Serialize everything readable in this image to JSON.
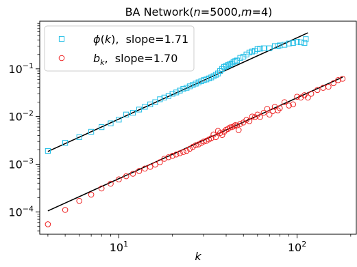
{
  "chart_data": {
    "type": "scatter",
    "title": "BA Network(n=5000,m=4)",
    "xlabel": "k",
    "ylabel": "",
    "xscale": "log",
    "yscale": "log",
    "xlim": [
      3.6,
      215
    ],
    "ylim": [
      3.4e-05,
      1.0
    ],
    "grid": false,
    "legend_position": "upper-left",
    "x_ticks": [
      {
        "value": 10,
        "base": "10",
        "exp": "1"
      },
      {
        "value": 100,
        "base": "10",
        "exp": "2"
      }
    ],
    "y_ticks": [
      {
        "value": 0.0001,
        "base": "10",
        "exp": "−4"
      },
      {
        "value": 0.001,
        "base": "10",
        "exp": "−3"
      },
      {
        "value": 0.01,
        "base": "10",
        "exp": "−2"
      },
      {
        "value": 0.1,
        "base": "10",
        "exp": "−1"
      }
    ],
    "series": [
      {
        "name": "ϕ(k),  slope=1.71",
        "marker": "square",
        "color": "#1fbde6",
        "x": [
          4,
          5,
          6,
          7,
          8,
          9,
          10,
          11,
          12,
          13,
          14,
          15,
          16,
          17,
          18,
          19,
          20,
          21,
          22,
          23,
          24,
          25,
          26,
          27,
          28,
          29,
          30,
          31,
          32,
          33,
          34,
          35,
          36,
          37,
          38,
          39,
          40,
          41,
          42,
          43,
          44,
          45,
          46,
          48,
          50,
          52,
          54,
          56,
          58,
          60,
          62,
          65,
          70,
          75,
          78,
          80,
          85,
          90,
          95,
          100,
          105,
          110,
          112
        ],
        "y": [
          0.0019,
          0.0028,
          0.0037,
          0.0048,
          0.006,
          0.0072,
          0.0086,
          0.011,
          0.012,
          0.014,
          0.016,
          0.018,
          0.02,
          0.023,
          0.025,
          0.027,
          0.03,
          0.032,
          0.035,
          0.038,
          0.04,
          0.043,
          0.046,
          0.049,
          0.052,
          0.055,
          0.058,
          0.06,
          0.063,
          0.066,
          0.07,
          0.075,
          0.08,
          0.09,
          0.1,
          0.11,
          0.115,
          0.12,
          0.125,
          0.13,
          0.14,
          0.145,
          0.15,
          0.17,
          0.18,
          0.2,
          0.22,
          0.23,
          0.24,
          0.26,
          0.265,
          0.27,
          0.27,
          0.3,
          0.3,
          0.31,
          0.32,
          0.34,
          0.35,
          0.37,
          0.36,
          0.35,
          0.42
        ]
      },
      {
        "name": "b_k,  slope=1.70",
        "marker": "circle",
        "color": "#ee2222",
        "x": [
          4,
          5,
          6,
          7,
          8,
          9,
          10,
          11,
          12,
          13,
          14,
          15,
          16,
          17,
          18,
          19,
          20,
          21,
          22,
          23,
          24,
          25,
          26,
          27,
          28,
          29,
          30,
          31,
          32,
          33,
          34,
          35,
          36,
          37,
          38,
          39,
          40,
          41,
          42,
          43,
          44,
          45,
          46,
          47,
          48,
          50,
          52,
          54,
          56,
          58,
          60,
          62,
          65,
          68,
          70,
          73,
          75,
          78,
          80,
          85,
          90,
          95,
          100,
          105,
          110,
          115,
          120,
          130,
          140,
          150,
          160,
          170,
          180
        ],
        "y": [
          5.5e-05,
          0.00011,
          0.00017,
          0.00023,
          0.00031,
          0.00039,
          0.00048,
          0.00056,
          0.00063,
          0.00072,
          0.00081,
          0.00088,
          0.00098,
          0.0011,
          0.0013,
          0.0014,
          0.0015,
          0.0016,
          0.0017,
          0.0018,
          0.0019,
          0.0021,
          0.0023,
          0.0025,
          0.0026,
          0.0028,
          0.003,
          0.0031,
          0.0033,
          0.0035,
          0.0042,
          0.0037,
          0.005,
          0.0045,
          0.0041,
          0.0048,
          0.0053,
          0.0055,
          0.0059,
          0.006,
          0.0062,
          0.0066,
          0.0065,
          0.0052,
          0.007,
          0.0075,
          0.0085,
          0.008,
          0.01,
          0.0097,
          0.011,
          0.0098,
          0.012,
          0.0145,
          0.011,
          0.013,
          0.016,
          0.0135,
          0.015,
          0.02,
          0.017,
          0.018,
          0.026,
          0.025,
          0.028,
          0.025,
          0.03,
          0.036,
          0.04,
          0.042,
          0.05,
          0.058,
          0.062
        ]
      }
    ],
    "fit_lines": [
      {
        "color": "#000000",
        "x": [
          4,
          115
        ],
        "y": [
          0.00185,
          0.57
        ]
      },
      {
        "color": "#000000",
        "x": [
          4,
          180
        ],
        "y": [
          0.000105,
          0.067
        ]
      }
    ]
  }
}
